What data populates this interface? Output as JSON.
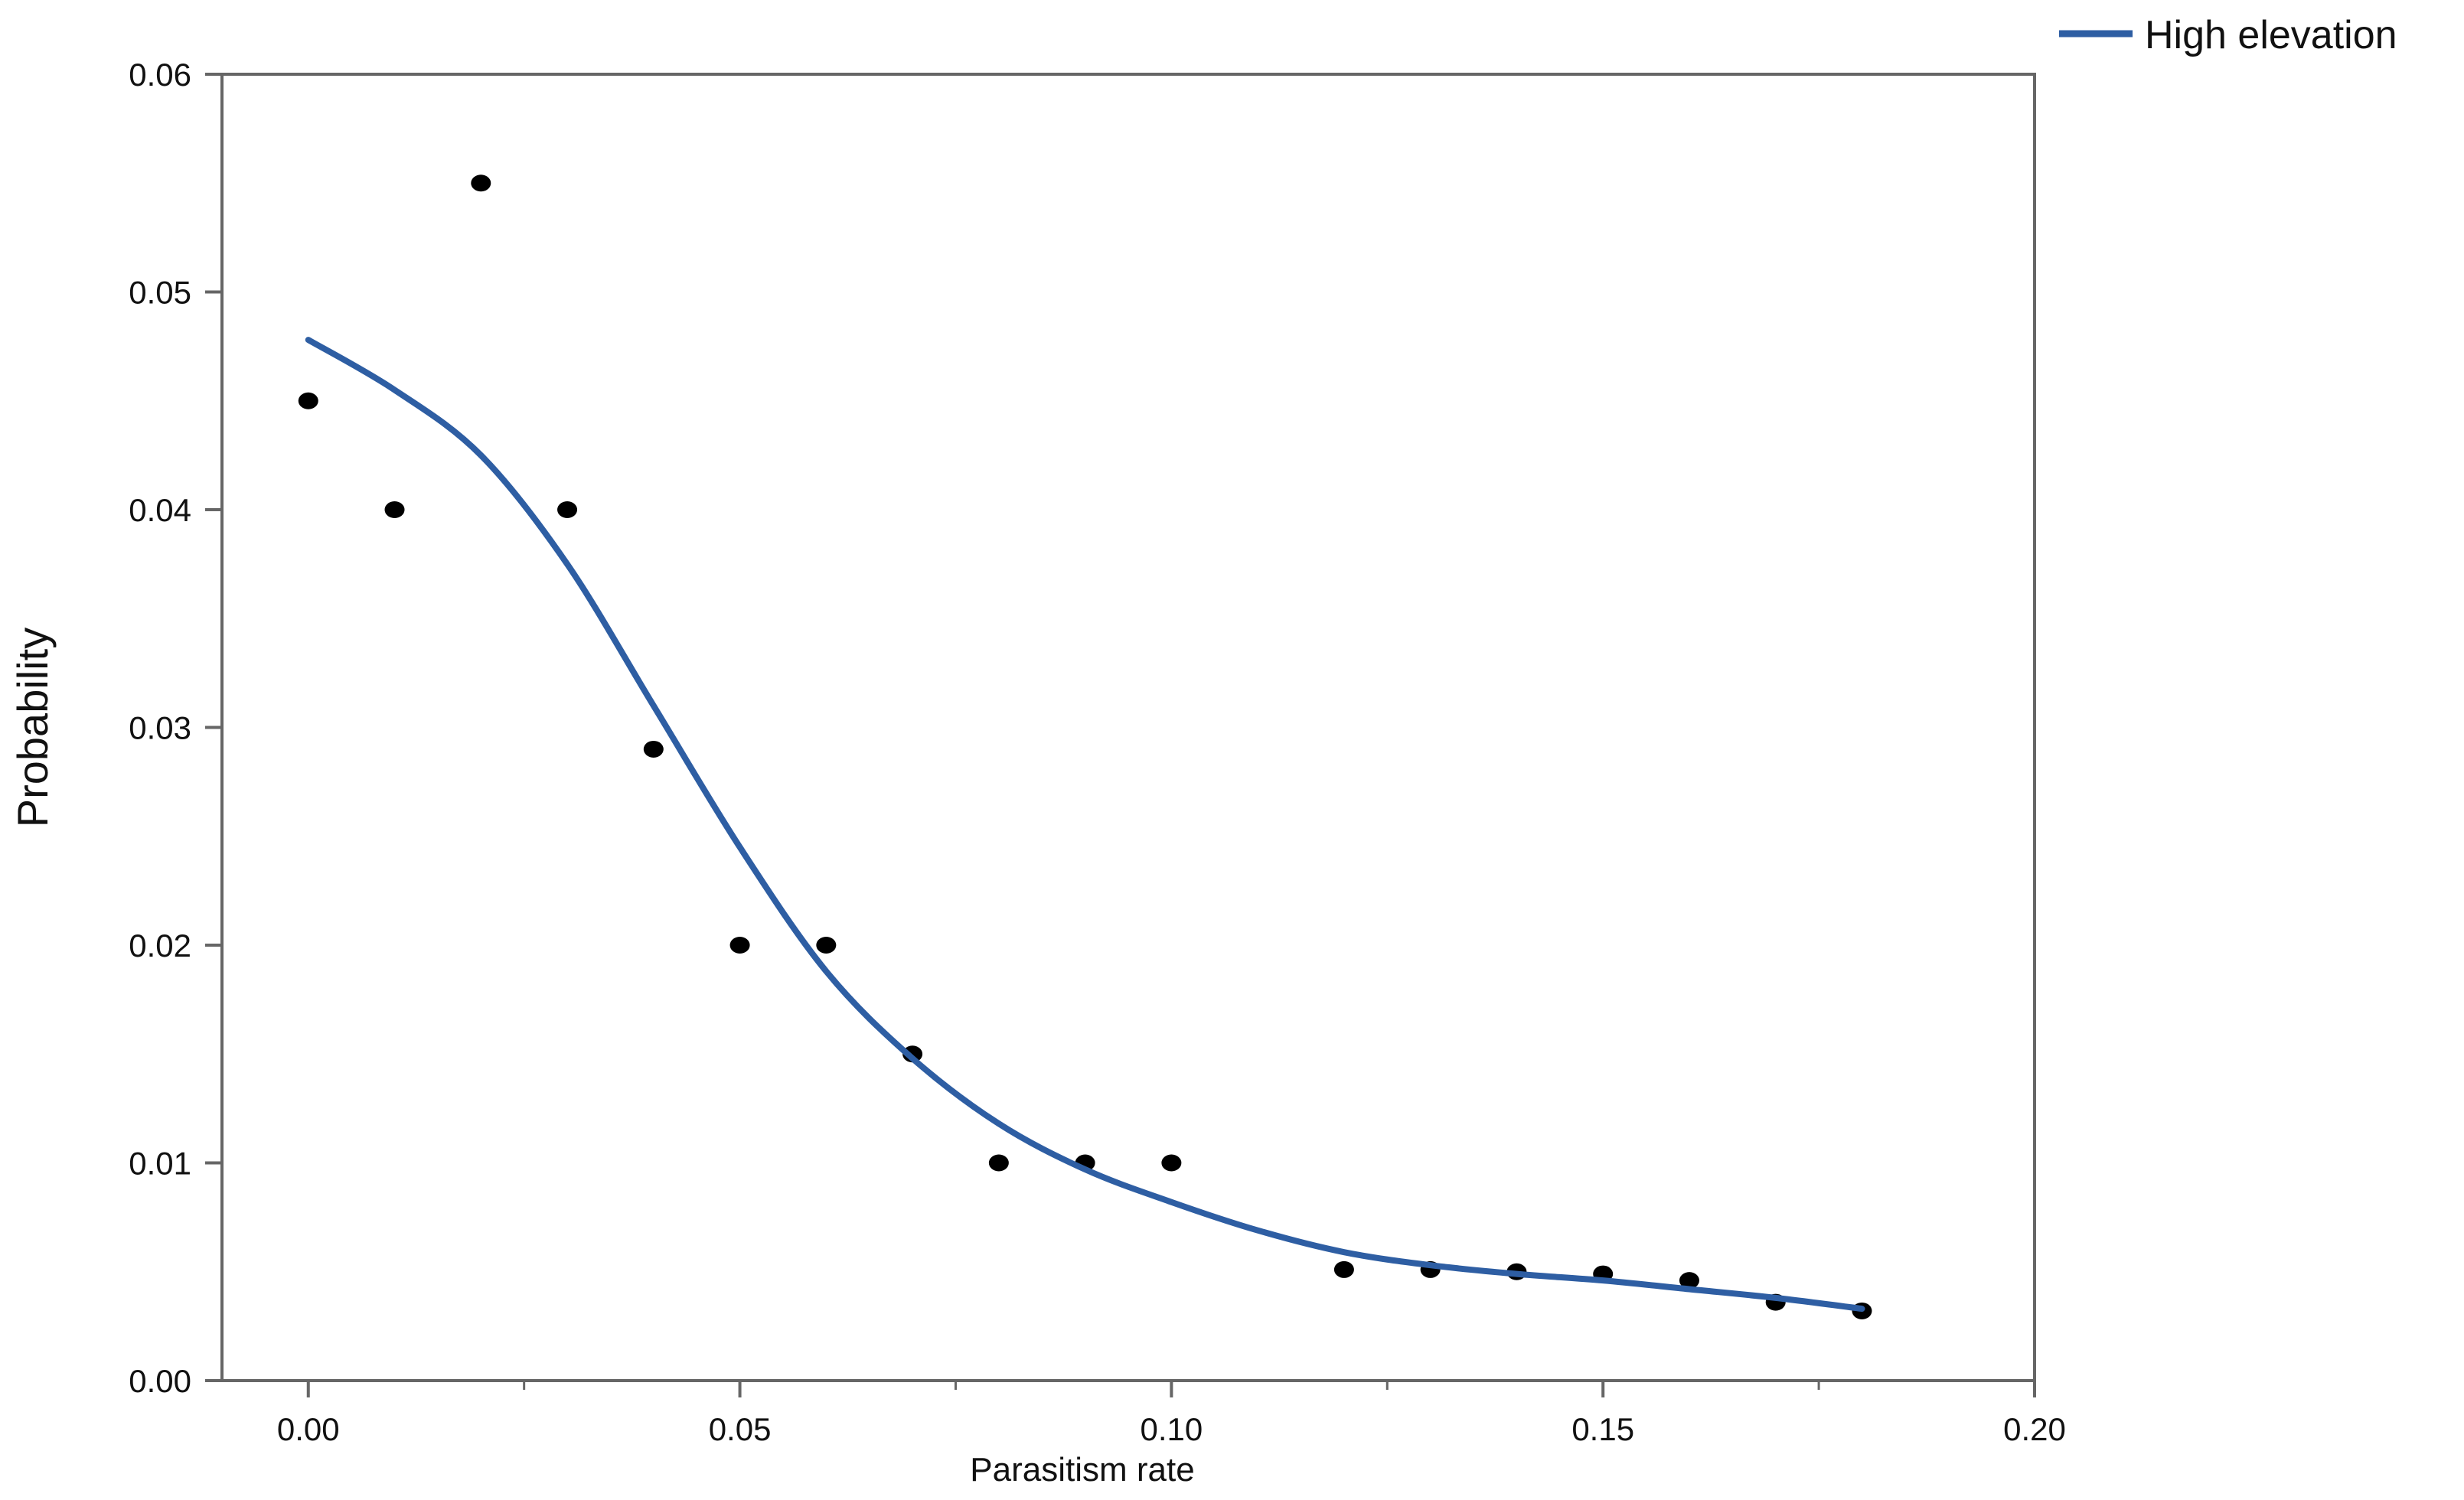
{
  "chart_data": {
    "type": "scatter",
    "title": "",
    "xlabel": "Parasitism rate",
    "ylabel": "Probability",
    "xlim": [
      -0.01,
      0.2
    ],
    "ylim": [
      0.0,
      0.06
    ],
    "x_ticks": [
      "0.00",
      "0.05",
      "0.10",
      "0.15",
      "0.20"
    ],
    "x_tick_values": [
      0.0,
      0.05,
      0.1,
      0.15,
      0.2
    ],
    "x_minor_tick_values": [
      0.025,
      0.075,
      0.125,
      0.175
    ],
    "y_ticks": [
      "0.00",
      "0.01",
      "0.02",
      "0.03",
      "0.04",
      "0.05",
      "0.06"
    ],
    "y_tick_values": [
      0.0,
      0.01,
      0.02,
      0.03,
      0.04,
      0.05,
      0.06
    ],
    "grid": false,
    "legend_position": "top-right",
    "points": {
      "color": "#000000",
      "x": [
        0.0,
        0.01,
        0.02,
        0.03,
        0.04,
        0.05,
        0.06,
        0.07,
        0.08,
        0.09,
        0.1,
        0.12,
        0.13,
        0.14,
        0.15,
        0.16,
        0.17,
        0.18
      ],
      "y": [
        0.045,
        0.04,
        0.055,
        0.04,
        0.029,
        0.02,
        0.02,
        0.015,
        0.01,
        0.01,
        0.01,
        0.0051,
        0.0051,
        0.005,
        0.0049,
        0.0046,
        0.0036,
        0.0032
      ]
    },
    "series": [
      {
        "name": "High elevation",
        "type": "line",
        "color": "#2e5ea3",
        "x": [
          0.0,
          0.01,
          0.02,
          0.03,
          0.04,
          0.05,
          0.06,
          0.07,
          0.08,
          0.09,
          0.1,
          0.11,
          0.12,
          0.13,
          0.14,
          0.15,
          0.16,
          0.17,
          0.18
        ],
        "y": [
          0.0478,
          0.0455,
          0.0425,
          0.0375,
          0.031,
          0.0245,
          0.0188,
          0.0148,
          0.0118,
          0.0097,
          0.0082,
          0.0069,
          0.0059,
          0.0053,
          0.0049,
          0.0046,
          0.0042,
          0.0038,
          0.0033
        ]
      }
    ]
  }
}
